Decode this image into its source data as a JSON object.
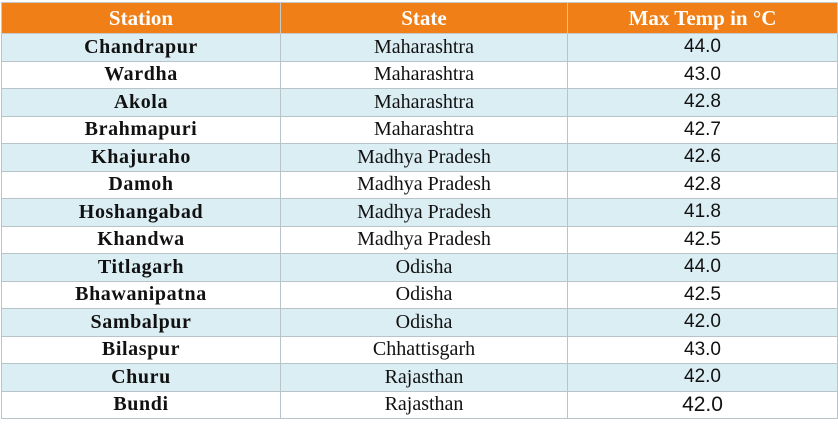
{
  "table": {
    "headers": [
      "Station",
      "State",
      "Max Temp in °C"
    ],
    "rows": [
      [
        "Chandrapur",
        "Maharashtra",
        "44.0"
      ],
      [
        "Wardha",
        "Maharashtra",
        "43.0"
      ],
      [
        "Akola",
        "Maharashtra",
        "42.8"
      ],
      [
        "Brahmapuri",
        "Maharashtra",
        "42.7"
      ],
      [
        "Khajuraho",
        "Madhya Pradesh",
        "42.6"
      ],
      [
        "Damoh",
        "Madhya Pradesh",
        "42.8"
      ],
      [
        "Hoshangabad",
        "Madhya Pradesh",
        "41.8"
      ],
      [
        "Khandwa",
        "Madhya Pradesh",
        "42.5"
      ],
      [
        "Titlagarh",
        "Odisha",
        "44.0"
      ],
      [
        "Bhawanipatna",
        "Odisha",
        "42.5"
      ],
      [
        "Sambalpur",
        "Odisha",
        "42.0"
      ],
      [
        "Bilaspur",
        "Chhattisgarh",
        "43.0"
      ],
      [
        "Churu",
        "Rajasthan",
        "42.0"
      ],
      [
        "Bundi",
        "Rajasthan",
        "42.0"
      ]
    ]
  },
  "colors": {
    "header_bg": "#f07f17",
    "header_text": "#ffffff",
    "row_band": "#dbeef4",
    "row_plain": "#ffffff"
  }
}
